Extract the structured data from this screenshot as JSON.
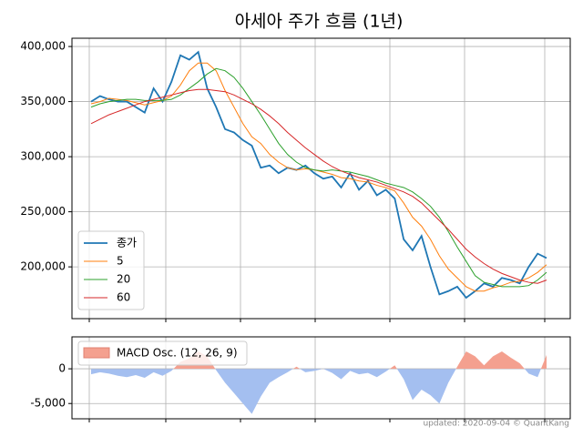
{
  "chart_data": [
    {
      "type": "line",
      "title": "아세아 주가 흐름 (1년)",
      "ylim": [
        153000,
        407500
      ],
      "yticks": [
        {
          "value": 200000,
          "label": "200,000"
        },
        {
          "value": 250000,
          "label": "250,000"
        },
        {
          "value": 300000,
          "label": "300,000"
        },
        {
          "value": 350000,
          "label": "350,000"
        },
        {
          "value": 400000,
          "label": "400,000"
        }
      ],
      "grid": true,
      "legend": "lower left",
      "series": [
        {
          "name": "종가",
          "color": "#1f77b4",
          "values": [
            350000,
            355000,
            352000,
            350000,
            350000,
            345000,
            340000,
            362000,
            350000,
            368000,
            392000,
            388000,
            395000,
            362000,
            345000,
            325000,
            322000,
            315000,
            310000,
            290000,
            292000,
            285000,
            290000,
            288000,
            292000,
            285000,
            280000,
            282000,
            272000,
            285000,
            270000,
            278000,
            265000,
            270000,
            262000,
            225000,
            215000,
            228000,
            200000,
            175000,
            178000,
            182000,
            172000,
            178000,
            185000,
            182000,
            190000,
            188000,
            185000,
            200000,
            212000,
            208000
          ]
        },
        {
          "name": "5",
          "color": "#ff7f0e",
          "values": [
            348000,
            350000,
            353000,
            352000,
            351000,
            349000,
            347000,
            349000,
            351000,
            355000,
            365000,
            378000,
            385000,
            385000,
            378000,
            360000,
            345000,
            330000,
            318000,
            312000,
            302000,
            295000,
            290000,
            288000,
            289000,
            288000,
            286000,
            284000,
            281000,
            280000,
            278000,
            277000,
            274000,
            272000,
            269000,
            258000,
            245000,
            237000,
            225000,
            210000,
            198000,
            190000,
            182000,
            178000,
            178000,
            181000,
            183000,
            186000,
            187000,
            190000,
            195000,
            202000
          ]
        },
        {
          "name": "20",
          "color": "#2ca02c",
          "values": [
            345000,
            348000,
            350000,
            351000,
            352000,
            352000,
            351000,
            351000,
            351000,
            352000,
            356000,
            362000,
            368000,
            375000,
            380000,
            378000,
            372000,
            362000,
            350000,
            338000,
            325000,
            312000,
            302000,
            295000,
            290000,
            288000,
            287000,
            288000,
            287000,
            286000,
            284000,
            282000,
            279000,
            276000,
            274000,
            272000,
            268000,
            262000,
            255000,
            245000,
            232000,
            218000,
            205000,
            192000,
            186000,
            184000,
            182000,
            182000,
            182000,
            183000,
            188000,
            195000
          ]
        },
        {
          "name": "60",
          "color": "#d62728",
          "values": [
            330000,
            334000,
            338000,
            341000,
            344000,
            347000,
            350000,
            352000,
            354000,
            356000,
            358000,
            360000,
            361000,
            361000,
            360000,
            359000,
            356000,
            352000,
            348000,
            343000,
            337000,
            330000,
            322000,
            315000,
            308000,
            302000,
            296000,
            291000,
            287000,
            284000,
            281000,
            279000,
            277000,
            274000,
            271000,
            268000,
            264000,
            258000,
            250000,
            242000,
            234000,
            225000,
            216000,
            209000,
            203000,
            198000,
            194000,
            191000,
            188000,
            186000,
            185000,
            188000
          ]
        }
      ]
    },
    {
      "type": "area",
      "ylim": [
        -7200,
        4600
      ],
      "yticks": [
        {
          "value": -5000,
          "label": "-5,000"
        },
        0
      ],
      "grid": true,
      "legend": "upper left",
      "series": [
        {
          "name": "MACD Osc. (12, 26, 9)",
          "color": "#f4a08f",
          "negative_color": "#a4bff0",
          "values": [
            -800,
            -500,
            -700,
            -1000,
            -1200,
            -900,
            -1300,
            -500,
            -1000,
            -300,
            1000,
            1500,
            2500,
            1800,
            -200,
            -2000,
            -3500,
            -5000,
            -6500,
            -4000,
            -2000,
            -1200,
            -500,
            300,
            -500,
            -300,
            0,
            -600,
            -1500,
            -300,
            -800,
            -600,
            -1200,
            -400,
            500,
            -1500,
            -4500,
            -3000,
            -3800,
            -5000,
            -2000,
            300,
            2500,
            1800,
            500,
            1800,
            2500,
            1600,
            800,
            -700,
            -1200,
            2000
          ]
        }
      ],
      "annotation": "updated: 2020-09-04 © QuantKang"
    }
  ]
}
